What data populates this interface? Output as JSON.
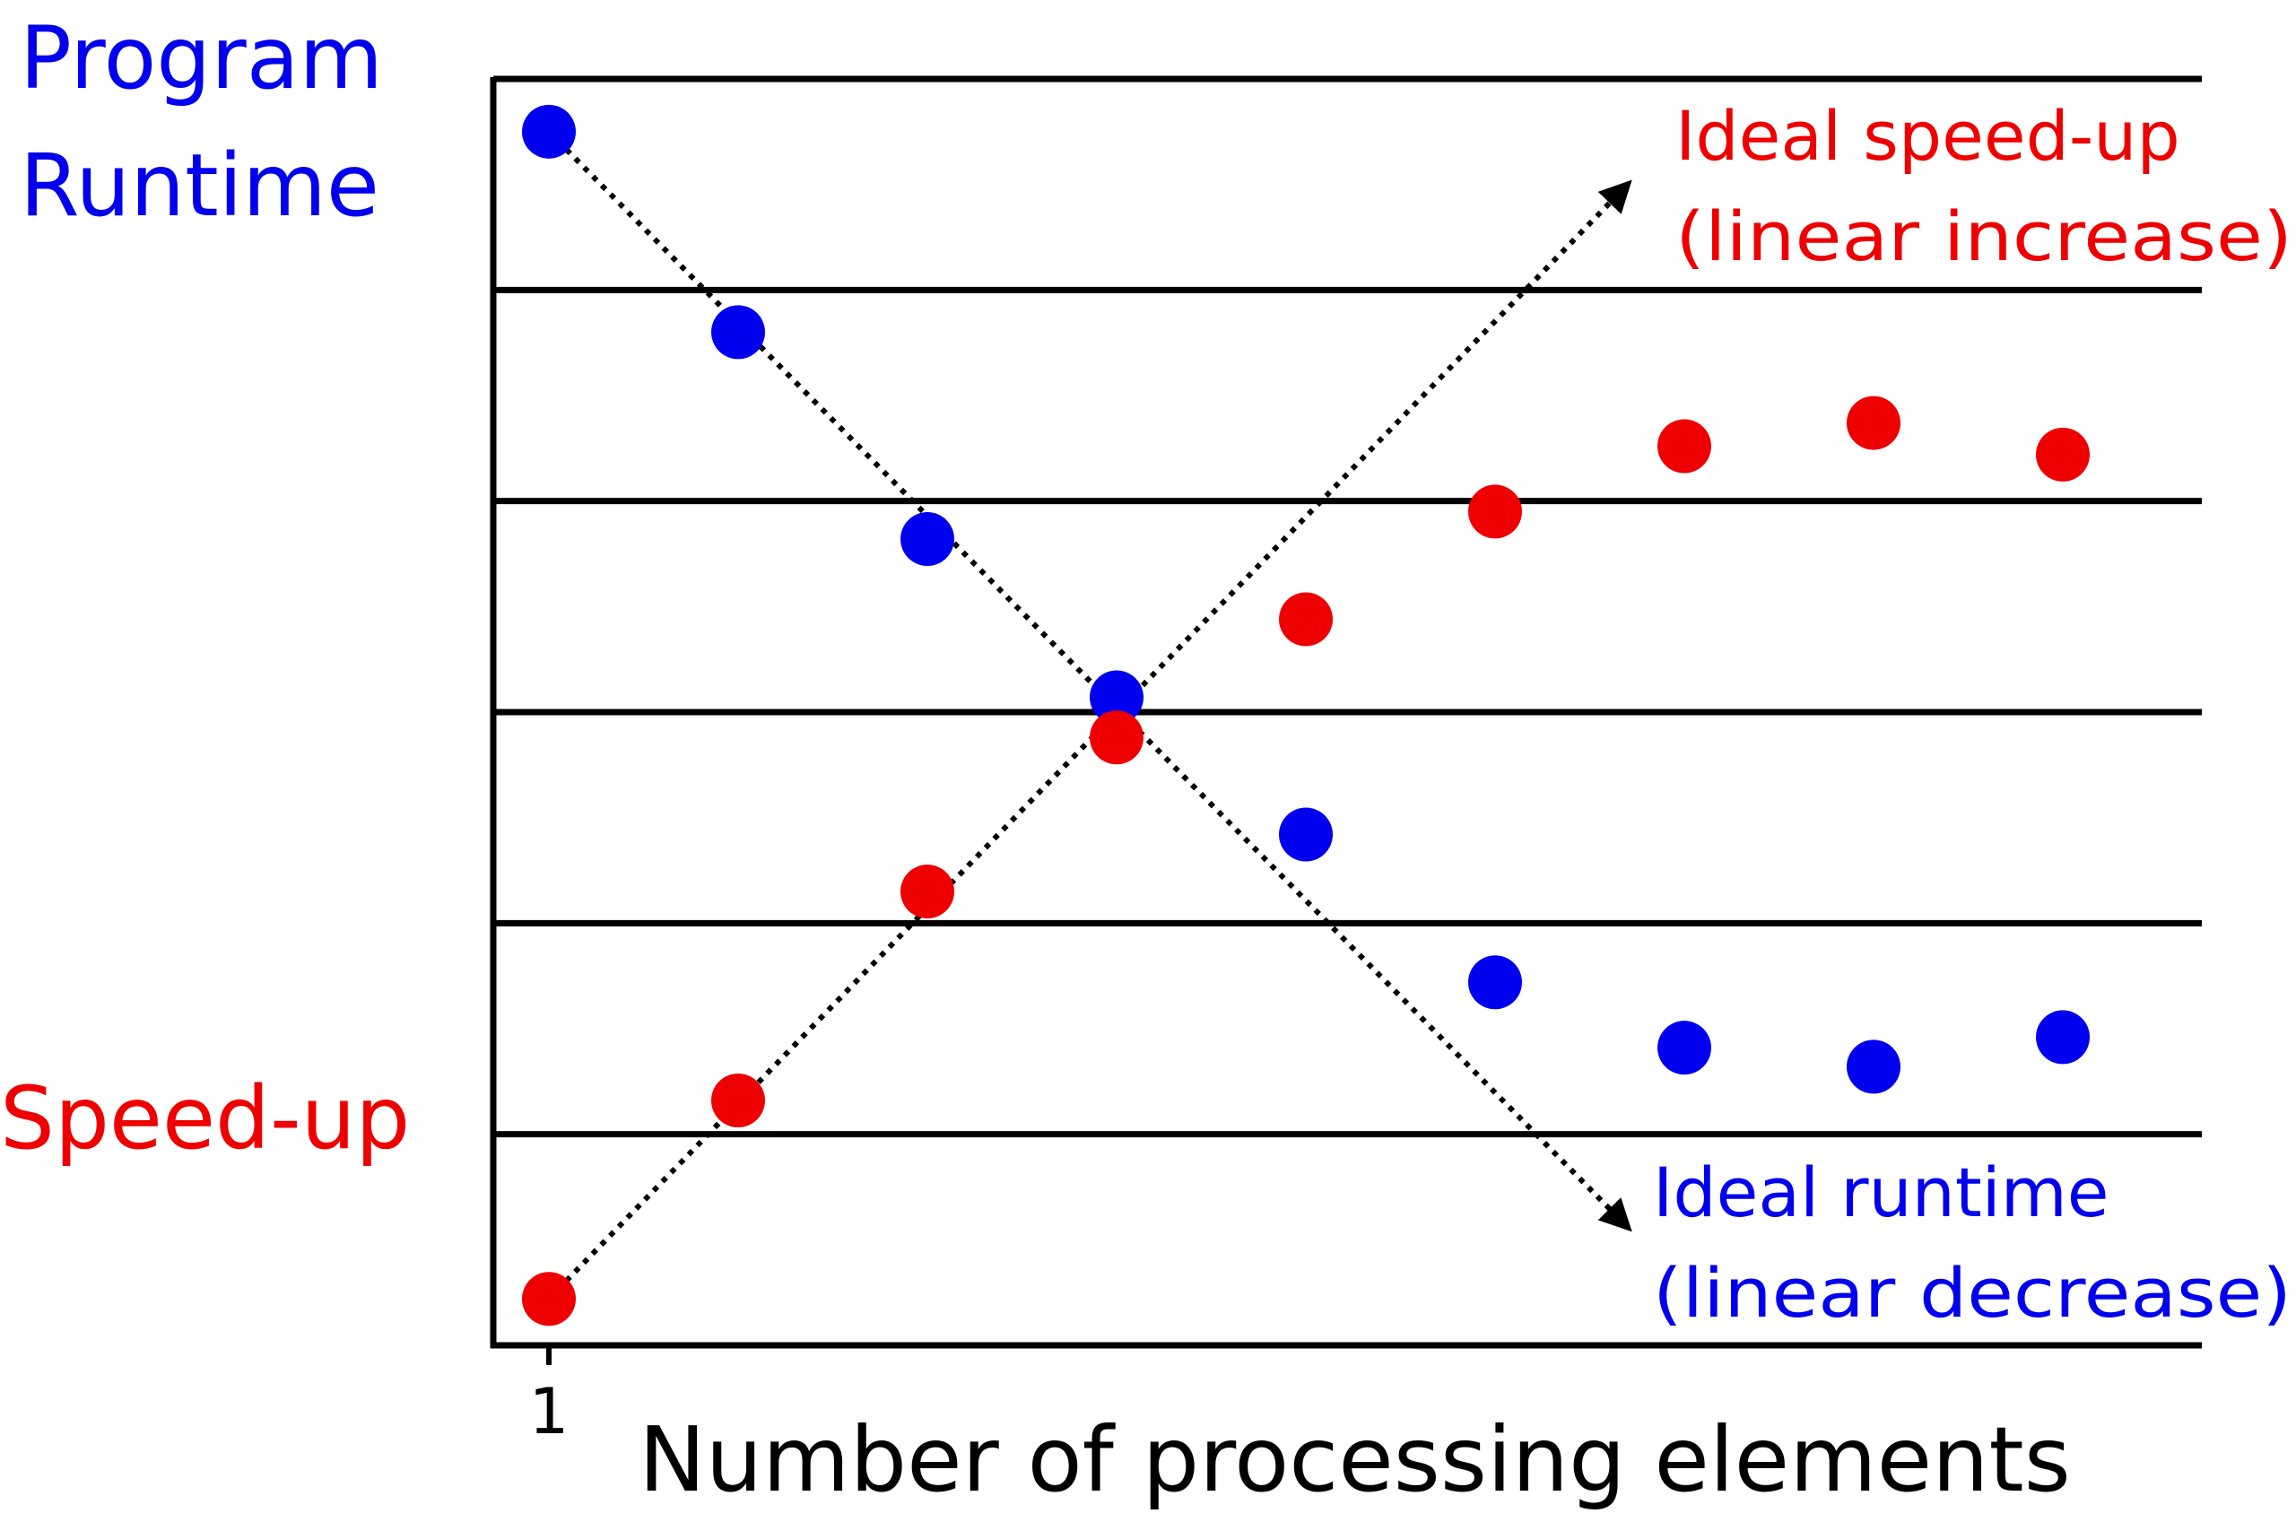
{
  "colors": {
    "runtime": "#0000ee",
    "speedup": "#ee0000",
    "axis": "#000000"
  },
  "labels": {
    "runtime_axis_line1": "Program",
    "runtime_axis_line2": "Runtime",
    "speedup_axis": "Speed-up",
    "xlabel": "Number of processing elements",
    "x_tick": "1",
    "ideal_speedup_line1": "Ideal speed-up",
    "ideal_speedup_line2": "(linear increase)",
    "ideal_runtime_line1": "Ideal runtime",
    "ideal_runtime_line2": "(linear decrease)"
  },
  "chart_data": {
    "type": "scatter",
    "title": "",
    "xlabel": "Number of processing elements",
    "ylabel_left_top": "Program Runtime",
    "ylabel_left_bottom": "Speed-up",
    "x_ticks": [
      "1"
    ],
    "y_ticks": [],
    "grid": "horizontal",
    "ylim": [
      0,
      6
    ],
    "xlim": [
      0.7,
      10
    ],
    "series": [
      {
        "name": "Program Runtime",
        "color": "#0000ee",
        "x": [
          1,
          2,
          3,
          4,
          5,
          6,
          7,
          8,
          9
        ],
        "y": [
          5.75,
          4.8,
          3.82,
          3.07,
          2.42,
          1.72,
          1.41,
          1.32,
          1.46
        ]
      },
      {
        "name": "Speed-up",
        "color": "#ee0000",
        "x": [
          1,
          2,
          3,
          4,
          5,
          6,
          7,
          8,
          9
        ],
        "y": [
          0.22,
          1.16,
          2.15,
          2.88,
          3.44,
          3.95,
          4.26,
          4.37,
          4.22
        ]
      }
    ],
    "reference_lines": [
      {
        "name": "Ideal speed-up (linear increase)",
        "from": [
          1,
          0.22
        ],
        "to": [
          6.7,
          5.5
        ]
      },
      {
        "name": "Ideal runtime (linear decrease)",
        "from": [
          1,
          5.75
        ],
        "to": [
          6.7,
          0.56
        ]
      }
    ]
  }
}
